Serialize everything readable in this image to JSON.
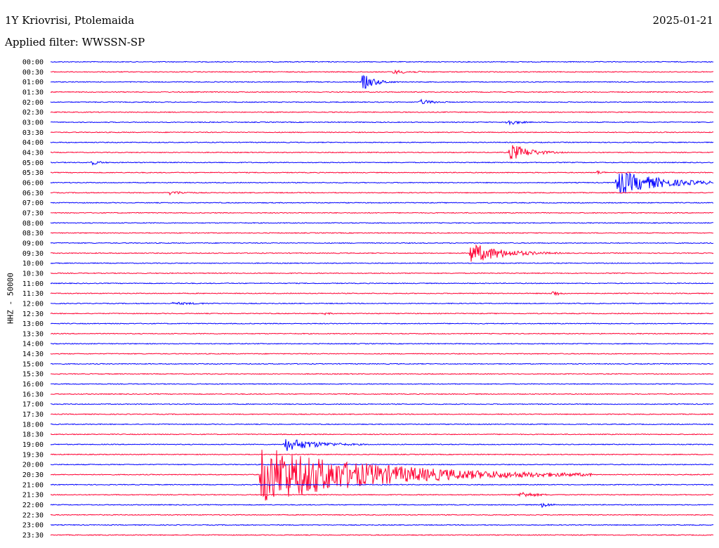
{
  "header": {
    "station": "1Y Kriovrisi, Ptolemaida",
    "date": "2025-01-21",
    "filter": "Applied filter: WWSSN-SP"
  },
  "chart_data": {
    "type": "line",
    "title": "1Y Kriovrisi, Ptolemaida",
    "ylabel": "HHZ - 50000",
    "trace_colors": [
      "#0000ff",
      "#ff0033"
    ],
    "rows": [
      "00:00",
      "00:30",
      "01:00",
      "01:30",
      "02:00",
      "02:30",
      "03:00",
      "03:30",
      "04:00",
      "04:30",
      "05:00",
      "05:30",
      "06:00",
      "06:30",
      "07:00",
      "07:30",
      "08:00",
      "08:30",
      "09:00",
      "09:30",
      "10:00",
      "10:30",
      "11:00",
      "11:30",
      "12:00",
      "12:30",
      "13:00",
      "13:30",
      "14:00",
      "14:30",
      "15:00",
      "15:30",
      "16:00",
      "16:30",
      "17:00",
      "17:30",
      "18:00",
      "18:30",
      "19:00",
      "19:30",
      "20:00",
      "20:30",
      "21:00",
      "21:30",
      "22:00",
      "22:30",
      "23:00",
      "23:30"
    ],
    "row_duration_min": 30,
    "events": [
      {
        "row": "00:30",
        "minute": 15.5,
        "amp": 3,
        "dur": 1.2
      },
      {
        "row": "01:00",
        "minute": 14.1,
        "amp": 12,
        "dur": 0.6
      },
      {
        "row": "02:00",
        "minute": 16.7,
        "amp": 4,
        "dur": 0.8
      },
      {
        "row": "03:00",
        "minute": 20.6,
        "amp": 5,
        "dur": 0.6
      },
      {
        "row": "04:30",
        "minute": 20.8,
        "amp": 13,
        "dur": 0.9
      },
      {
        "row": "05:00",
        "minute": 1.8,
        "amp": 4,
        "dur": 0.5
      },
      {
        "row": "05:30",
        "minute": 24.7,
        "amp": 3,
        "dur": 0.4
      },
      {
        "row": "06:00",
        "minute": 25.6,
        "amp": 18,
        "dur": 2.0
      },
      {
        "row": "06:30",
        "minute": 5.4,
        "amp": 3,
        "dur": 0.9
      },
      {
        "row": "09:30",
        "minute": 19.0,
        "amp": 15,
        "dur": 1.5
      },
      {
        "row": "11:30",
        "minute": 22.7,
        "amp": 6,
        "dur": 0.3
      },
      {
        "row": "12:00",
        "minute": 5.5,
        "amp": 2,
        "dur": 2.0
      },
      {
        "row": "12:30",
        "minute": 12.4,
        "amp": 2,
        "dur": 0.4
      },
      {
        "row": "19:00",
        "minute": 10.6,
        "amp": 10,
        "dur": 1.5
      },
      {
        "row": "20:30",
        "minute": 9.5,
        "amp": 42,
        "dur": 5.0
      },
      {
        "row": "21:30",
        "minute": 21.2,
        "amp": 5,
        "dur": 0.8
      },
      {
        "row": "22:00",
        "minute": 22.2,
        "amp": 4,
        "dur": 0.5
      }
    ]
  }
}
